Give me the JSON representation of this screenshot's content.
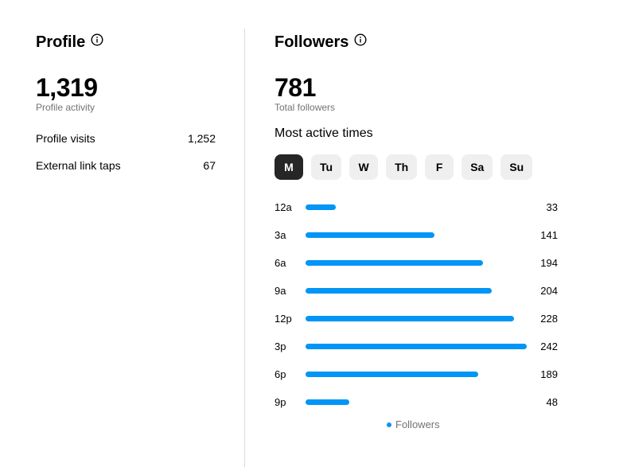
{
  "profile": {
    "title": "Profile",
    "activity_value": "1,319",
    "activity_label": "Profile activity",
    "stats": [
      {
        "label": "Profile visits",
        "value": "1,252"
      },
      {
        "label": "External link taps",
        "value": "67"
      }
    ]
  },
  "followers": {
    "title": "Followers",
    "total_value": "781",
    "total_label": "Total followers",
    "active_times_title": "Most active times",
    "days": [
      "M",
      "Tu",
      "W",
      "Th",
      "F",
      "Sa",
      "Su"
    ],
    "selected_day": "M"
  },
  "colors": {
    "bar": "#0095f6",
    "active_tab": "#262626",
    "tab": "#efefef"
  },
  "chart_data": {
    "type": "bar",
    "orientation": "horizontal",
    "categories": [
      "12a",
      "3a",
      "6a",
      "9a",
      "12p",
      "3p",
      "6p",
      "9p"
    ],
    "series": [
      {
        "name": "Followers",
        "values": [
          33,
          141,
          194,
          204,
          228,
          242,
          189,
          48
        ]
      }
    ],
    "xlim": [
      0,
      242
    ],
    "legend": "bottom"
  }
}
